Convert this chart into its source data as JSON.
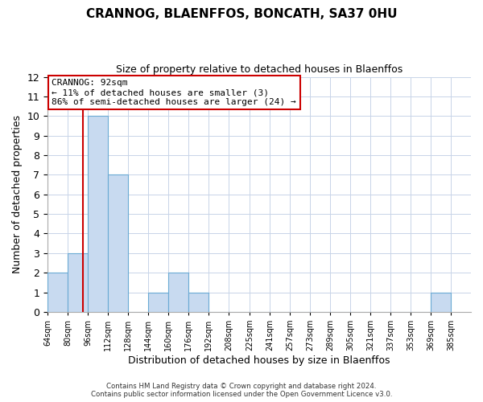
{
  "title": "CRANNOG, BLAENFFOS, BONCATH, SA37 0HU",
  "subtitle": "Size of property relative to detached houses in Blaenffos",
  "xlabel": "Distribution of detached houses by size in Blaenffos",
  "ylabel": "Number of detached properties",
  "bin_edges": [
    64,
    80,
    96,
    112,
    128,
    144,
    160,
    176,
    192,
    208,
    225,
    241,
    257,
    273,
    289,
    305,
    321,
    337,
    353,
    369,
    385
  ],
  "bin_labels": [
    "64sqm",
    "80sqm",
    "96sqm",
    "112sqm",
    "128sqm",
    "144sqm",
    "160sqm",
    "176sqm",
    "192sqm",
    "208sqm",
    "225sqm",
    "241sqm",
    "257sqm",
    "273sqm",
    "289sqm",
    "305sqm",
    "321sqm",
    "337sqm",
    "353sqm",
    "369sqm",
    "385sqm"
  ],
  "counts": [
    2,
    3,
    10,
    7,
    0,
    1,
    2,
    1,
    0,
    0,
    0,
    0,
    0,
    0,
    0,
    0,
    0,
    0,
    0,
    1
  ],
  "bar_color": "#c8daf0",
  "bar_edge_color": "#6aaad4",
  "property_size": 92,
  "vline_color": "#cc0000",
  "ylim": [
    0,
    12
  ],
  "yticks": [
    0,
    1,
    2,
    3,
    4,
    5,
    6,
    7,
    8,
    9,
    10,
    11,
    12
  ],
  "annotation_title": "CRANNOG: 92sqm",
  "annotation_line1": "← 11% of detached houses are smaller (3)",
  "annotation_line2": "86% of semi-detached houses are larger (24) →",
  "annotation_box_color": "#ffffff",
  "annotation_box_edge_color": "#cc0000",
  "footer_line1": "Contains HM Land Registry data © Crown copyright and database right 2024.",
  "footer_line2": "Contains public sector information licensed under the Open Government Licence v3.0.",
  "background_color": "#ffffff",
  "grid_color": "#c8d4e8"
}
